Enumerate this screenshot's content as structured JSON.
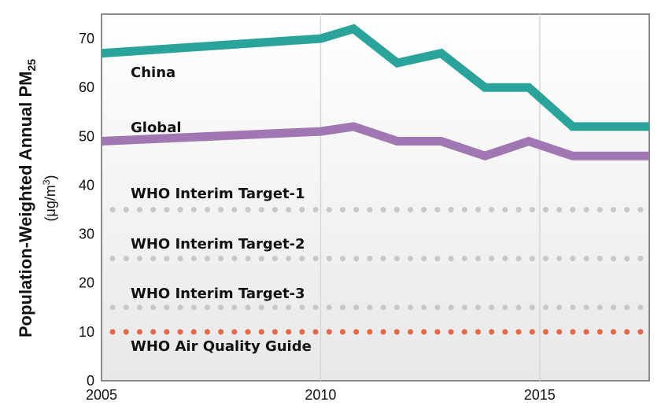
{
  "chart_data": {
    "type": "line",
    "ylabel": "Population-Weighted Annual PM",
    "ylabel_sub": "25",
    "yunit_prefix": "(μg/m",
    "yunit_sup": "3",
    "yunit_suffix": ")",
    "xlim": [
      2005,
      2017.5
    ],
    "ylim": [
      0,
      75
    ],
    "xticks": [
      "2005",
      "2010",
      "2015"
    ],
    "yticks": [
      "0",
      "10",
      "20",
      "30",
      "40",
      "50",
      "60",
      "70"
    ],
    "grid": "vertical",
    "series": [
      {
        "name": "China",
        "color": "#2aa39a",
        "x": [
          2005,
          2010,
          2010.75,
          2011.75,
          2012.75,
          2013.75,
          2014.75,
          2015.75,
          2017.5
        ],
        "y": [
          67,
          70,
          72,
          65,
          67,
          60,
          60,
          52,
          52
        ]
      },
      {
        "name": "Global",
        "color": "#a077b3",
        "x": [
          2005,
          2010,
          2010.75,
          2011.75,
          2012.75,
          2013.75,
          2014.75,
          2015.75,
          2017.5
        ],
        "y": [
          49,
          51,
          52,
          49,
          49,
          46,
          49,
          46,
          46
        ]
      }
    ],
    "reference_lines": [
      {
        "name": "WHO Interim Target-1",
        "value": 35,
        "color": "#c8c8c8"
      },
      {
        "name": "WHO Interim Target-2",
        "value": 25,
        "color": "#c8c8c8"
      },
      {
        "name": "WHO Interim Target-3",
        "value": 15,
        "color": "#c8c8c8"
      },
      {
        "name": "WHO Air Quality Guide",
        "value": 10,
        "color": "#e2684a"
      }
    ]
  }
}
